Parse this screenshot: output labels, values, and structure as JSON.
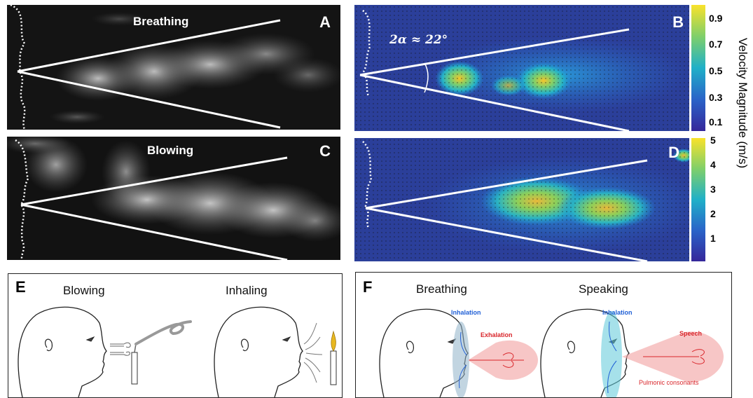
{
  "panels": {
    "A": {
      "letter": "A",
      "title": "Breathing"
    },
    "B": {
      "letter": "B",
      "angle_label": "2α ≈ 22°"
    },
    "C": {
      "letter": "C",
      "title": "Blowing"
    },
    "D": {
      "letter": "D"
    },
    "E": {
      "letter": "E",
      "left_title": "Blowing",
      "right_title": "Inhaling"
    },
    "F": {
      "letter": "F",
      "left_title": "Breathing",
      "right_title": "Speaking",
      "inhalation_left": "Inhalation",
      "exhalation": "Exhalation",
      "inhalation_right": "Inhalation",
      "speech": "Speech",
      "pulmonic": "Pulmonic consonants"
    }
  },
  "colorbar_B": {
    "ticks": [
      "0.9",
      "0.7",
      "0.5",
      "0.3",
      "0.1"
    ]
  },
  "colorbar_D": {
    "ticks": [
      "5",
      "4",
      "3",
      "2",
      "1"
    ]
  },
  "velocity_label": "Velocity Magnitude (m/s)",
  "colors": {
    "blue_field": "#2b3f9a",
    "inhale_blue": "#1f5fd6",
    "exhale_red": "#d9262b",
    "white": "#ffffff"
  }
}
